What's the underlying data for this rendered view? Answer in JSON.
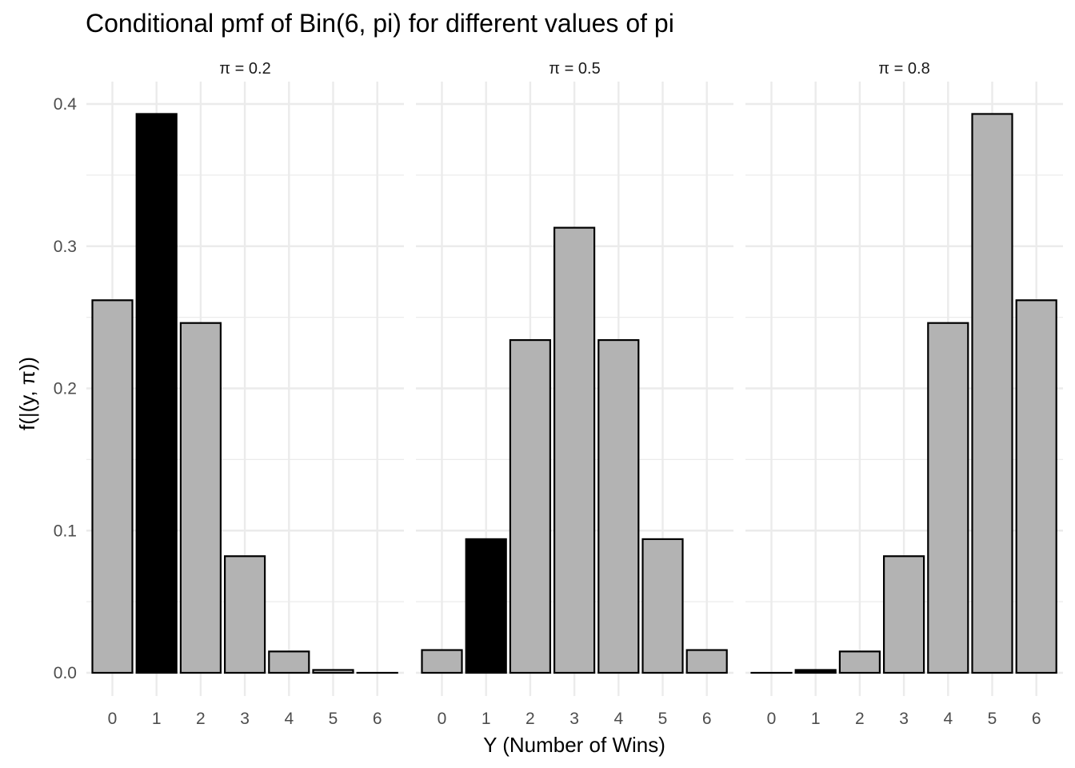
{
  "chart_data": {
    "type": "bar",
    "title": "Conditional pmf of Bin(6, pi) for different values of pi",
    "xlabel": "Y (Number of Wins)",
    "ylabel": "f(|(y, π))",
    "ylim": [
      0,
      0.4
    ],
    "yticks": [
      "0.0",
      "0.1",
      "0.2",
      "0.3",
      "0.4"
    ],
    "categories": [
      "0",
      "1",
      "2",
      "3",
      "4",
      "5",
      "6"
    ],
    "grid": true,
    "legend": "none",
    "highlighted_category": "1",
    "colors": {
      "bar": "#b3b3b3",
      "highlight": "#000000",
      "outline": "#000000",
      "grid": "#ebebeb"
    },
    "panels": [
      {
        "label": "π = 0.2",
        "values": [
          0.262,
          0.393,
          0.246,
          0.082,
          0.015,
          0.002,
          0.0
        ]
      },
      {
        "label": "π = 0.5",
        "values": [
          0.016,
          0.094,
          0.234,
          0.313,
          0.234,
          0.094,
          0.016
        ]
      },
      {
        "label": "π = 0.8",
        "values": [
          0.0,
          0.002,
          0.015,
          0.082,
          0.246,
          0.393,
          0.262
        ]
      }
    ]
  }
}
